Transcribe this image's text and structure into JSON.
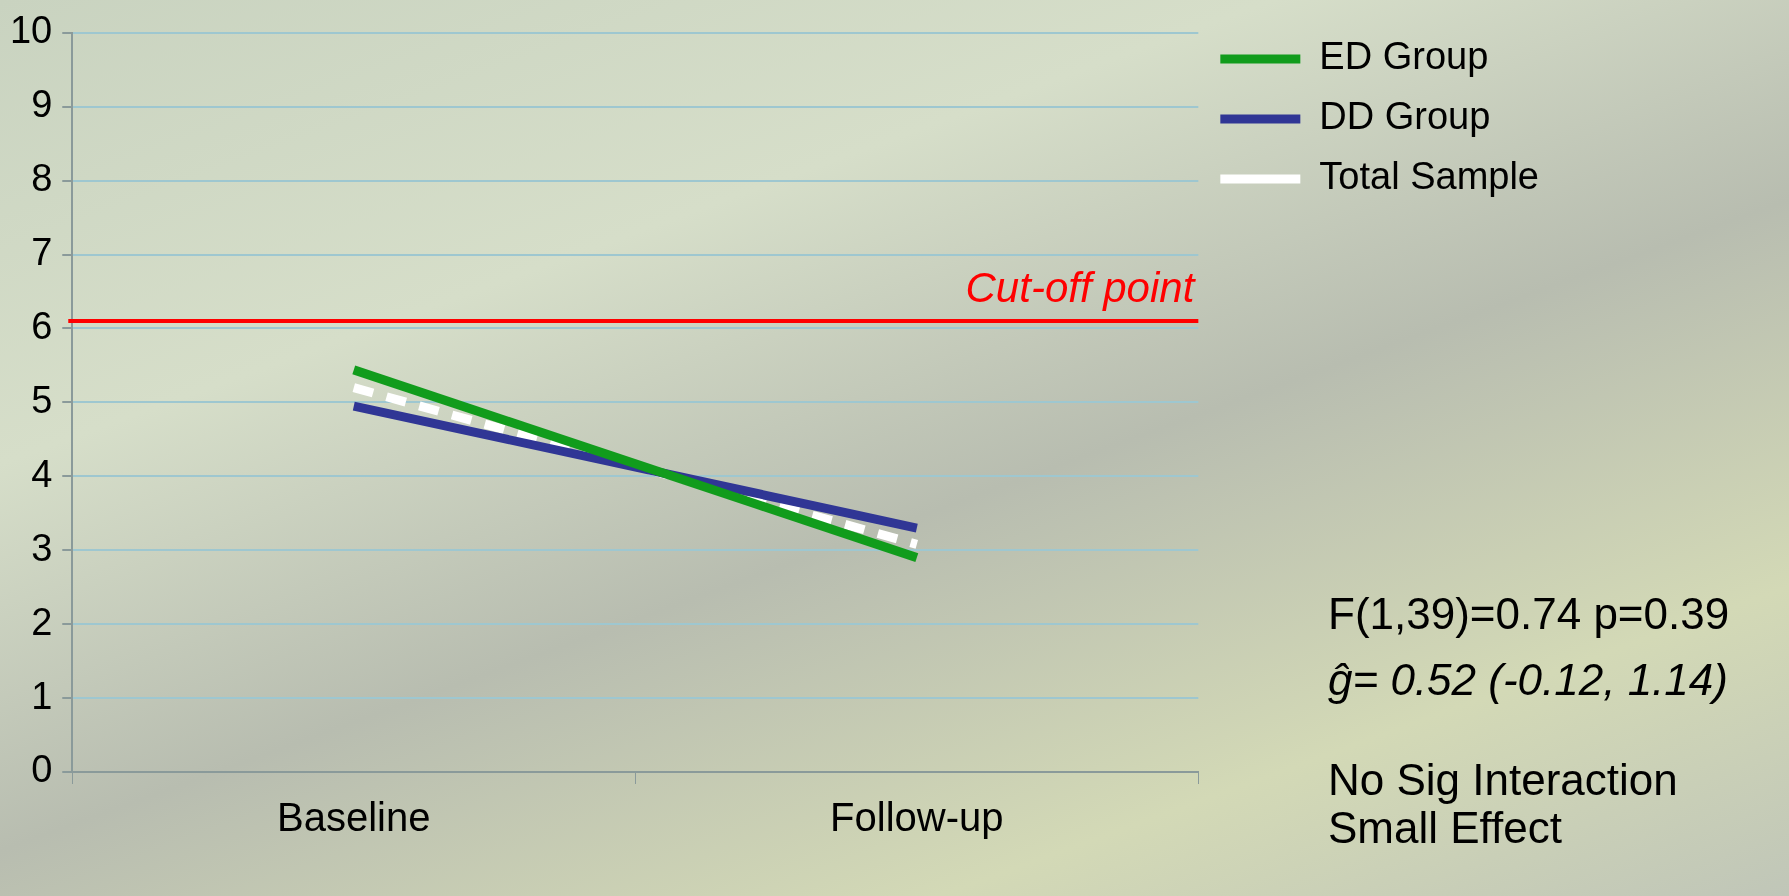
{
  "chart_data": {
    "type": "line",
    "categories": [
      "Baseline",
      "Follow-up"
    ],
    "series": [
      {
        "name": "ED Group",
        "color": "#119c1c",
        "values": [
          5.44,
          2.9
        ]
      },
      {
        "name": "DD Group",
        "color": "#303695",
        "values": [
          4.95,
          3.3
        ]
      },
      {
        "name": "Total Sample",
        "color": "#ffffff",
        "values": [
          5.2,
          3.08
        ],
        "line_style": "dashed"
      }
    ],
    "ylim": [
      0,
      10
    ],
    "yticks": [
      0,
      1,
      2,
      3,
      4,
      5,
      6,
      7,
      8,
      9,
      10
    ],
    "grid": "y",
    "legend": "top right",
    "marker": "none",
    "line_style": "solid",
    "ref_lines": [
      {
        "axis": "y",
        "value": 6.1,
        "label": "Cut-off point",
        "color": "#ff0000"
      }
    ],
    "annotations": [
      "F(1,39)=0.74 p=0.39",
      "ĝ= 0.52  (-0.12, 1.14)",
      "No Sig Interaction",
      "Small Effect"
    ]
  }
}
